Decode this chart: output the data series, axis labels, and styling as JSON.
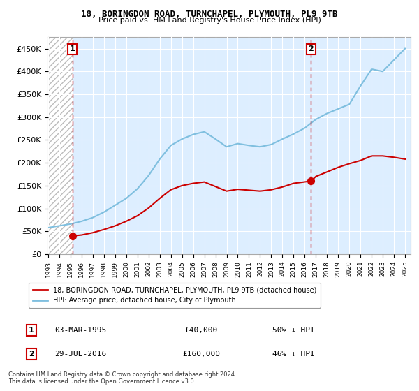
{
  "title": "18, BORINGDON ROAD, TURNCHAPEL, PLYMOUTH, PL9 9TB",
  "subtitle": "Price paid vs. HM Land Registry's House Price Index (HPI)",
  "legend_line1": "18, BORINGDON ROAD, TURNCHAPEL, PLYMOUTH, PL9 9TB (detached house)",
  "legend_line2": "HPI: Average price, detached house, City of Plymouth",
  "sale1_label": "1",
  "sale1_date": "03-MAR-1995",
  "sale1_price": "£40,000",
  "sale1_hpi": "50% ↓ HPI",
  "sale1_year": 1995.17,
  "sale1_value": 40000,
  "sale2_label": "2",
  "sale2_date": "29-JUL-2016",
  "sale2_price": "£160,000",
  "sale2_hpi": "46% ↓ HPI",
  "sale2_year": 2016.57,
  "sale2_value": 160000,
  "ylim": [
    0,
    475000
  ],
  "yticks": [
    0,
    50000,
    100000,
    150000,
    200000,
    250000,
    300000,
    350000,
    400000,
    450000
  ],
  "xmin": 1993.0,
  "xmax": 2025.5,
  "footer_line1": "Contains HM Land Registry data © Crown copyright and database right 2024.",
  "footer_line2": "This data is licensed under the Open Government Licence v3.0.",
  "hpi_color": "#7fbfdf",
  "sale_color": "#cc0000",
  "hpi_years": [
    1993,
    1994,
    1995,
    1996,
    1997,
    1998,
    1999,
    2000,
    2001,
    2002,
    2003,
    2004,
    2005,
    2006,
    2007,
    2008,
    2009,
    2010,
    2011,
    2012,
    2013,
    2014,
    2015,
    2016,
    2017,
    2018,
    2019,
    2020,
    2021,
    2022,
    2023,
    2024,
    2025
  ],
  "hpi_values": [
    58000,
    62000,
    66000,
    72000,
    80000,
    92000,
    107000,
    122000,
    143000,
    172000,
    208000,
    238000,
    252000,
    262000,
    268000,
    252000,
    235000,
    242000,
    238000,
    235000,
    240000,
    252000,
    263000,
    276000,
    295000,
    308000,
    318000,
    328000,
    368000,
    405000,
    400000,
    425000,
    450000
  ],
  "sale_years": [
    1995.17,
    1996,
    1997,
    1998,
    1999,
    2000,
    2001,
    2002,
    2003,
    2004,
    2005,
    2006,
    2007,
    2008,
    2009,
    2010,
    2011,
    2012,
    2013,
    2014,
    2015,
    2016.57,
    2017,
    2018,
    2019,
    2020,
    2021,
    2022,
    2023,
    2024,
    2025
  ],
  "sale_values": [
    40000,
    42000,
    47000,
    54000,
    62000,
    72000,
    84000,
    101000,
    122000,
    141000,
    150000,
    155000,
    158000,
    148000,
    138000,
    142000,
    140000,
    138000,
    141000,
    147000,
    155000,
    160000,
    170000,
    180000,
    190000,
    198000,
    205000,
    215000,
    215000,
    212000,
    208000
  ]
}
